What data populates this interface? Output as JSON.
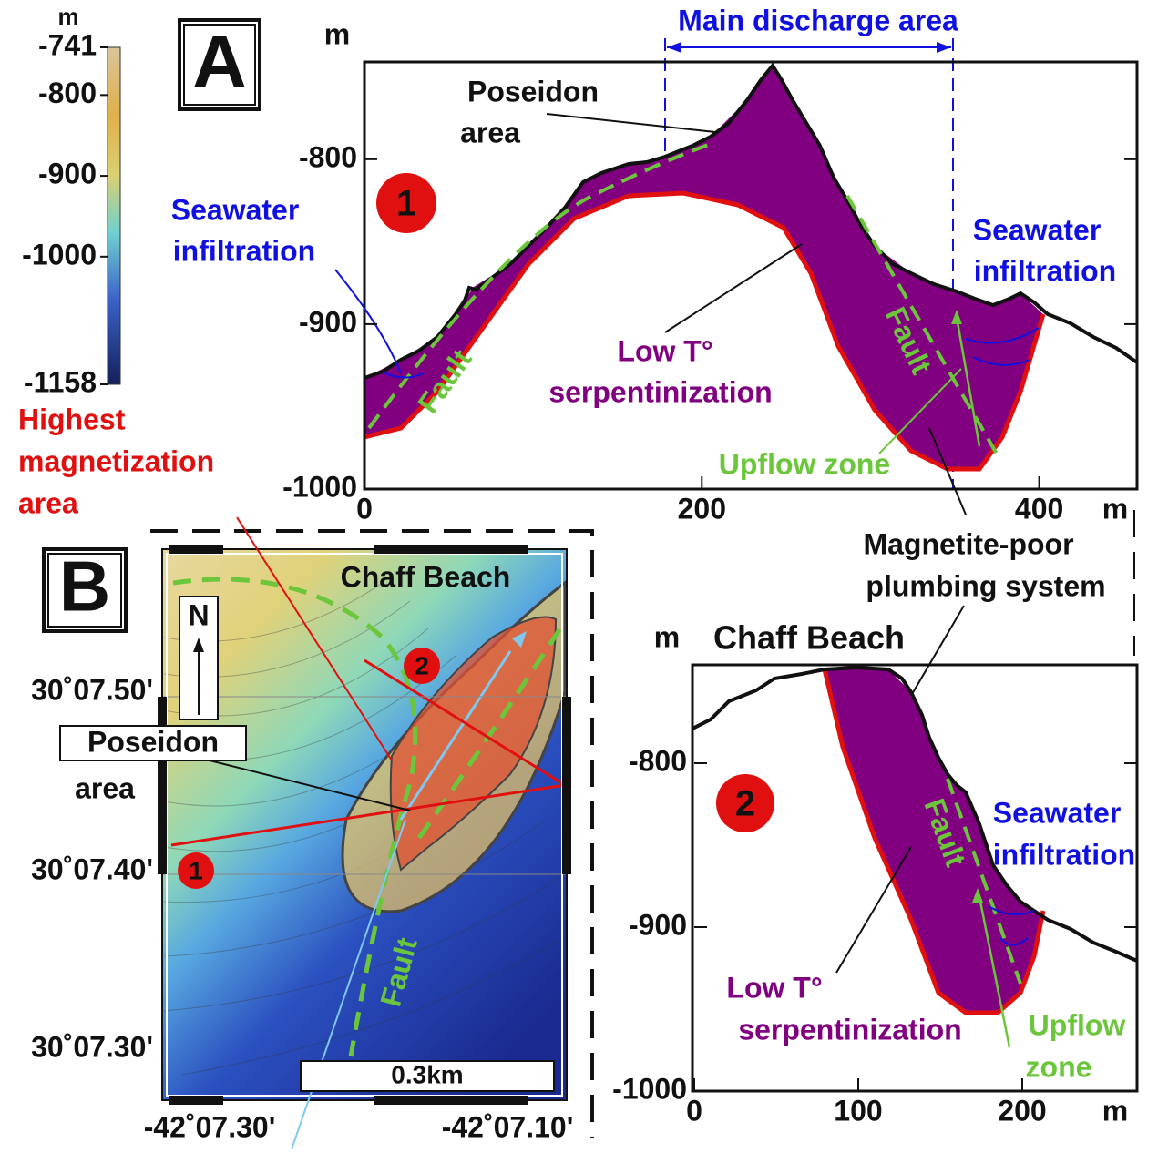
{
  "colorbar": {
    "unit": "m",
    "range": [
      -1158,
      -741
    ],
    "ticks": [
      -741,
      -800,
      -900,
      -1000,
      -1158
    ]
  },
  "highest_magnetization": [
    "Highest",
    "magnetization",
    "area"
  ],
  "magnetite_poor": [
    "Magnetite-poor",
    "plumbing system"
  ],
  "panel_a": {
    "label": "A",
    "discharge_label": "Main discharge area",
    "profile_1": {
      "marker": "1",
      "y_unit": "m",
      "x_unit": "m",
      "xlim": [
        0,
        458
      ],
      "ylim": [
        -1000,
        -741
      ],
      "xticks": [
        0,
        200,
        400
      ],
      "yticks": [
        -800,
        -900,
        -1000
      ],
      "poseidon": [
        "Poseidon",
        "area"
      ],
      "seawater_left": [
        "Seawater",
        "infiltration"
      ],
      "seawater_right": [
        "Seawater",
        "infiltration"
      ],
      "fault_left": "Fault",
      "fault_right": "Fault",
      "low_t": [
        "Low T°",
        "serpentinization"
      ],
      "upflow": "Upflow zone"
    }
  },
  "panel_b": {
    "label": "B",
    "title": "Chaff Beach",
    "north": "N",
    "poseidon": [
      "Poseidon",
      "area"
    ],
    "fault": "Fault",
    "scale_bar": "0.3km",
    "markers": [
      "1",
      "2"
    ],
    "lat_labels": [
      "30˚07.50'",
      "30˚07.40'",
      "30˚07.30'"
    ],
    "lon_labels": [
      "-42˚07.30'",
      "-42˚07.10'"
    ]
  },
  "profile_2": {
    "title": "Chaff Beach",
    "marker": "2",
    "y_unit": "m",
    "x_unit": "m",
    "xlim": [
      0,
      270
    ],
    "ylim": [
      -1000,
      -740
    ],
    "xticks": [
      0,
      100,
      200
    ],
    "yticks": [
      -800,
      -900,
      -1000
    ],
    "fault": "Fault",
    "seawater": [
      "Seawater",
      "infiltration"
    ],
    "low_t": [
      "Low T°",
      "serpentinization"
    ],
    "upflow": [
      "Upflow",
      "zone"
    ]
  }
}
